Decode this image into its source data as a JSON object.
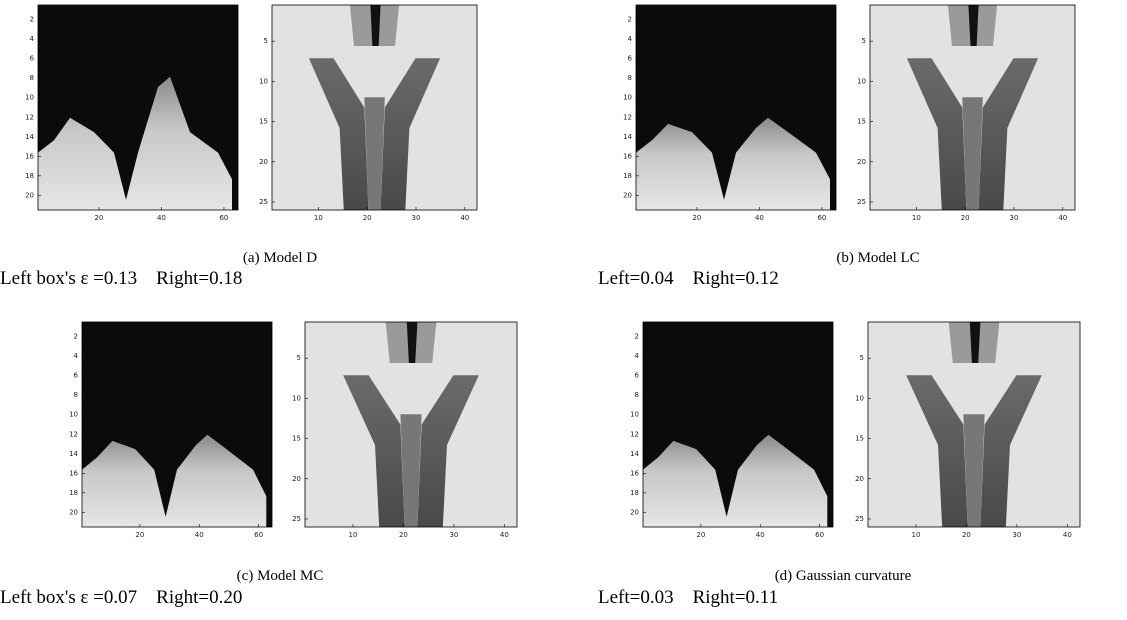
{
  "panels": [
    {
      "caption": "(a) Model D",
      "metrics": "Left box's ε =0.13    Right=0.18",
      "left_plot": {
        "yticks": [
          2,
          4,
          6,
          8,
          10,
          12,
          14,
          16,
          18,
          20
        ],
        "xticks": [
          20,
          40,
          60
        ]
      },
      "right_plot": {
        "yticks": [
          5,
          10,
          15,
          20,
          25
        ],
        "xticks": [
          10,
          20,
          30,
          40
        ]
      }
    },
    {
      "caption": "(b) Model LC",
      "metrics": "Left=0.04    Right=0.12",
      "left_plot": {
        "yticks": [
          2,
          4,
          6,
          8,
          10,
          12,
          14,
          16,
          18,
          20
        ],
        "xticks": [
          20,
          40,
          60
        ]
      },
      "right_plot": {
        "yticks": [
          5,
          10,
          15,
          20,
          25
        ],
        "xticks": [
          10,
          20,
          30,
          40
        ]
      }
    },
    {
      "caption": "(c) Model MC",
      "metrics": "Left box's ε =0.07    Right=0.20",
      "left_plot": {
        "yticks": [
          2,
          4,
          6,
          8,
          10,
          12,
          14,
          16,
          18,
          20
        ],
        "xticks": [
          20,
          40,
          60
        ]
      },
      "right_plot": {
        "yticks": [
          5,
          10,
          15,
          20,
          25
        ],
        "xticks": [
          10,
          20,
          30,
          40
        ]
      }
    },
    {
      "caption": "(d) Gaussian curvature",
      "metrics": "Left=0.03    Right=0.11",
      "left_plot": {
        "yticks": [
          2,
          4,
          6,
          8,
          10,
          12,
          14,
          16,
          18,
          20
        ],
        "xticks": [
          20,
          40,
          60
        ]
      },
      "right_plot": {
        "yticks": [
          5,
          10,
          15,
          20,
          25
        ],
        "xticks": [
          10,
          20,
          30,
          40
        ]
      }
    }
  ]
}
